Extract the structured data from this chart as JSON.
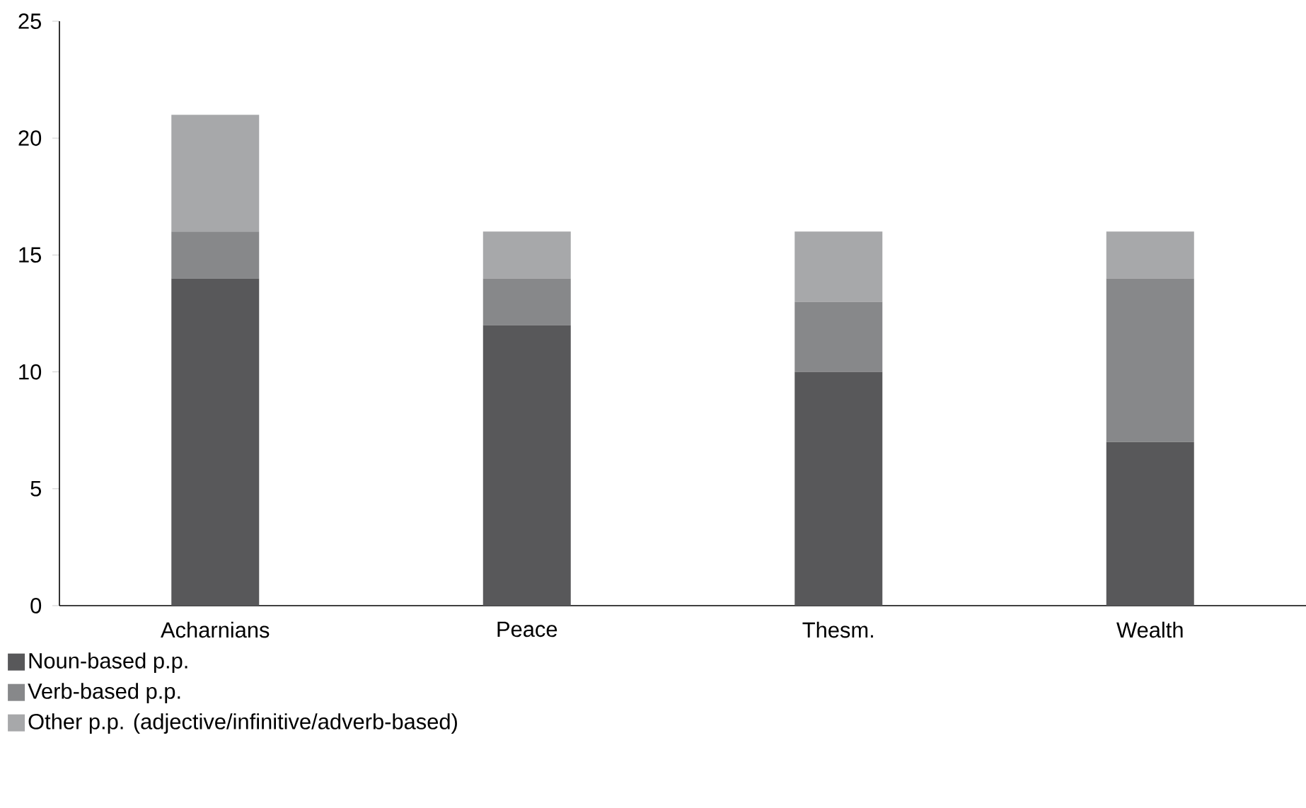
{
  "chart_data": {
    "type": "bar",
    "stacked": true,
    "categories": [
      "Acharnians",
      "Peace",
      "Thesm.",
      "Wealth"
    ],
    "series": [
      {
        "name": "Noun-based p.p.",
        "color": "#58585a",
        "values": [
          14,
          12,
          10,
          7
        ]
      },
      {
        "name": "Verb-based p.p.",
        "color": "#87888a",
        "values": [
          2,
          2,
          3,
          7
        ]
      },
      {
        "name": "Other p.p. (adjective/infinitive/adverb-based)",
        "color": "#a7a8aa",
        "values": [
          5,
          2,
          3,
          2
        ]
      }
    ],
    "ylim": [
      0,
      25
    ],
    "yticks": [
      0,
      5,
      10,
      15,
      20,
      25
    ],
    "grid": false,
    "legend": "bottom left"
  }
}
